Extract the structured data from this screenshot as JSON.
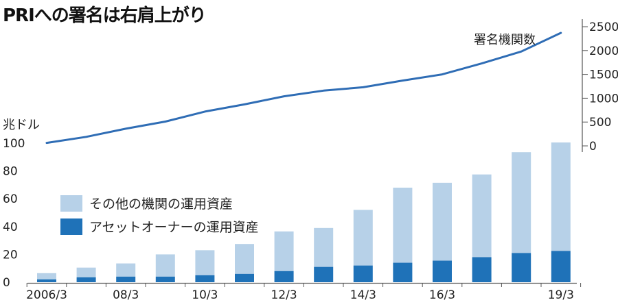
{
  "title": "PRIへの署名は右肩上がり",
  "colors": {
    "line": "#2f6db5",
    "other_assets": "#b7d1e8",
    "asset_owner": "#1f72b8",
    "axis": "#555555"
  },
  "chart_data": [
    {
      "type": "line",
      "series": [
        {
          "name": "署名機関数",
          "values": [
            63,
            190,
            360,
            510,
            720,
            870,
            1040,
            1160,
            1230,
            1370,
            1500,
            1730,
            1980,
            2370
          ]
        }
      ],
      "yticks": [
        "0",
        "500",
        "1000",
        "1500",
        "2000",
        "2500"
      ],
      "ylim": [
        0,
        2500
      ]
    },
    {
      "type": "bar",
      "stacked": true,
      "ylabel": "兆ドル",
      "x_labels": [
        "2006/3",
        "08/3",
        "10/3",
        "12/3",
        "14/3",
        "16/3",
        "19/3"
      ],
      "yticks": [
        "0",
        "20",
        "40",
        "60",
        "80",
        "100"
      ],
      "ylim": [
        0,
        100
      ],
      "series": [
        {
          "name": "アセットオーナーの運用資産",
          "values": [
            2,
            3.5,
            4,
            4,
            5,
            6,
            8,
            11,
            12,
            14,
            15.5,
            18,
            21,
            22.5
          ]
        },
        {
          "name": "その他の機関の運用資産",
          "values": [
            4.5,
            7,
            9.5,
            16,
            18,
            21.5,
            28.5,
            28,
            40,
            54,
            56,
            59.5,
            72.5,
            78
          ]
        }
      ]
    }
  ]
}
